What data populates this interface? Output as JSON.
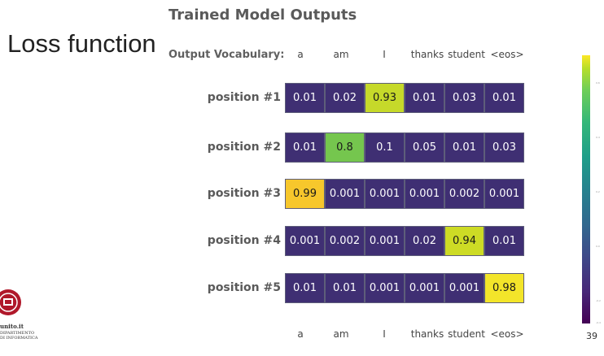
{
  "slide_heading": "Loss function",
  "title": "Trained Model Outputs",
  "vocab_label": "Output Vocabulary:",
  "vocabulary": [
    "a",
    "am",
    "I",
    "thanks",
    "student",
    "<eos>"
  ],
  "rows": [
    {
      "label": "position #1",
      "values": [
        "0.01",
        "0.02",
        "0.93",
        "0.01",
        "0.03",
        "0.01"
      ]
    },
    {
      "label": "position #2",
      "values": [
        "0.01",
        "0.8",
        "0.1",
        "0.05",
        "0.01",
        "0.03"
      ]
    },
    {
      "label": "position #3",
      "values": [
        "0.99",
        "0.001",
        "0.001",
        "0.001",
        "0.002",
        "0.001"
      ]
    },
    {
      "label": "position #4",
      "values": [
        "0.001",
        "0.002",
        "0.001",
        "0.02",
        "0.94",
        "0.01"
      ]
    },
    {
      "label": "position #5",
      "values": [
        "0.01",
        "0.01",
        "0.001",
        "0.001",
        "0.001",
        "0.98"
      ]
    }
  ],
  "colors": {
    "low": "#3f2f73",
    "high_0.8": "#75c64e",
    "high_0.93": "#c6d92a",
    "high_0.94": "#cddb25",
    "high_0.98": "#f3e52a",
    "high_0.99": "#f7c72c"
  },
  "colorbar_ticks": [
    "0.6",
    "0.4",
    "0.2",
    "0.0",
    "-0.2",
    "-0.4"
  ],
  "logo_text": "unito.it",
  "logo_sub": [
    "DIPARTIMENTO",
    "DI INFORMATICA"
  ],
  "page_number": "39"
}
